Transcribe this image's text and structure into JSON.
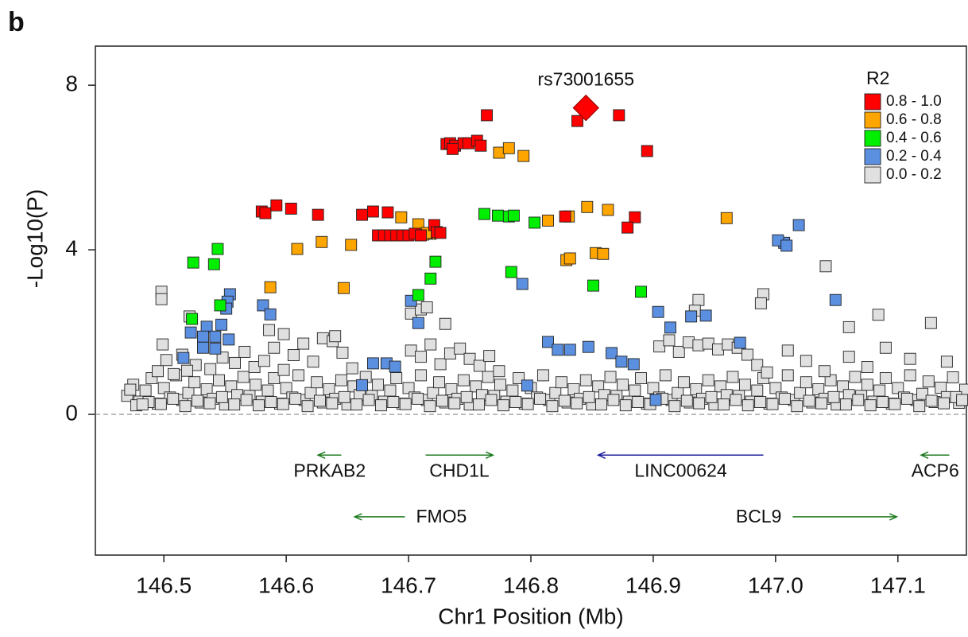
{
  "chart_data": {
    "type": "scatter",
    "panel_label": "b",
    "xlabel": "Chr1 Position (Mb)",
    "ylabel": "-Log10(P)",
    "xlim": [
      146.444,
      147.156
    ],
    "ylim": [
      -3.42,
      8.95
    ],
    "xticks": [
      146.5,
      146.6,
      146.7,
      146.8,
      146.9,
      {
        "value": 147,
        "label": "147.0"
      },
      147.1
    ],
    "yticks": [
      0,
      4,
      8
    ],
    "hline": 0,
    "legend": {
      "title": "R2",
      "position": "top-right"
    },
    "series": [
      {
        "name": "0.8 - 1.0",
        "color": "#ff0000",
        "x": [
          146.764,
          146.838,
          146.872,
          146.895,
          146.731,
          146.734,
          146.738,
          146.736,
          146.745,
          146.749,
          146.756,
          146.759,
          146.58,
          146.583,
          146.592,
          146.604,
          146.626,
          146.662,
          146.671,
          146.683,
          146.675,
          146.68,
          146.685,
          146.69,
          146.695,
          146.7,
          146.705,
          146.71,
          146.721,
          146.723,
          146.726,
          146.828,
          146.885,
          146.879
        ],
        "values": [
          7.27,
          7.13,
          7.27,
          6.4,
          6.57,
          6.59,
          6.53,
          6.45,
          6.59,
          6.59,
          6.65,
          6.53,
          4.93,
          4.89,
          5.08,
          5.0,
          4.85,
          4.85,
          4.93,
          4.91,
          4.35,
          4.35,
          4.35,
          4.35,
          4.35,
          4.35,
          4.39,
          4.35,
          4.6,
          4.43,
          4.41,
          4.81,
          4.79,
          4.54
        ]
      },
      {
        "name": "0.6 - 0.8",
        "color": "#ffa500",
        "x": [
          146.774,
          146.782,
          146.794,
          146.694,
          146.708,
          146.718,
          146.712,
          146.715,
          146.629,
          146.609,
          146.653,
          146.587,
          146.647,
          146.814,
          146.831,
          146.846,
          146.863,
          146.829,
          146.832,
          146.853,
          146.859,
          146.96
        ],
        "values": [
          6.36,
          6.47,
          6.28,
          4.79,
          4.62,
          4.39,
          4.37,
          4.41,
          4.19,
          4.02,
          4.12,
          3.09,
          3.07,
          4.71,
          4.81,
          5.04,
          4.97,
          3.75,
          3.79,
          3.92,
          3.9,
          4.77
        ]
      },
      {
        "name": "0.4 - 0.6",
        "color": "#00ee00",
        "x": [
          146.524,
          146.541,
          146.544,
          146.546,
          146.523,
          146.722,
          146.718,
          146.708,
          146.762,
          146.773,
          146.782,
          146.786,
          146.803,
          146.784,
          146.851,
          146.89
        ],
        "values": [
          3.69,
          3.65,
          4.02,
          2.65,
          2.32,
          3.71,
          3.3,
          2.9,
          4.87,
          4.83,
          4.81,
          4.83,
          4.66,
          3.46,
          3.13,
          2.98
        ]
      },
      {
        "name": "0.2 - 0.4",
        "color": "#5b8fe0",
        "x": [
          146.793,
          147.019,
          147.007,
          147.002,
          147.009,
          147.049,
          146.702,
          146.708,
          146.554,
          146.552,
          146.551,
          146.535,
          146.532,
          146.542,
          146.547,
          146.522,
          146.542,
          146.516,
          146.581,
          146.587,
          146.532,
          146.553,
          146.671,
          146.682,
          146.689,
          146.814,
          146.822,
          146.832,
          146.847,
          146.866,
          146.874,
          146.884,
          146.904,
          146.914,
          146.931,
          146.943,
          146.971,
          146.902,
          146.797,
          146.662
        ],
        "values": [
          3.17,
          4.6,
          4.17,
          4.23,
          4.1,
          2.78,
          2.76,
          2.22,
          2.92,
          2.74,
          2.57,
          2.13,
          1.89,
          1.89,
          2.18,
          1.99,
          1.6,
          1.37,
          2.65,
          2.43,
          1.62,
          1.82,
          1.24,
          1.24,
          1.16,
          1.76,
          1.57,
          1.57,
          1.64,
          1.49,
          1.28,
          1.22,
          2.49,
          2.11,
          2.38,
          2.4,
          1.74,
          0.35,
          0.7,
          0.71
        ]
      },
      {
        "name": "0.0 - 0.2",
        "color": "#e0e0e0",
        "x": [
          146.47,
          146.475,
          146.48,
          146.485,
          146.49,
          146.495,
          146.5,
          146.505,
          146.51,
          146.515,
          146.52,
          146.525,
          146.53,
          146.535,
          146.54,
          146.545,
          146.55,
          146.555,
          146.56,
          146.565,
          146.57,
          146.575,
          146.58,
          146.585,
          146.59,
          146.595,
          146.6,
          146.605,
          146.61,
          146.615,
          146.62,
          146.625,
          146.63,
          146.635,
          146.64,
          146.645,
          146.65,
          146.655,
          146.66,
          146.665,
          146.67,
          146.675,
          146.68,
          146.685,
          146.69,
          146.695,
          146.7,
          146.705,
          146.71,
          146.715,
          146.72,
          146.725,
          146.73,
          146.735,
          146.74,
          146.745,
          146.75,
          146.755,
          146.76,
          146.765,
          146.77,
          146.775,
          146.78,
          146.785,
          146.79,
          146.795,
          146.8,
          146.805,
          146.81,
          146.815,
          146.82,
          146.825,
          146.83,
          146.835,
          146.84,
          146.845,
          146.85,
          146.855,
          146.86,
          146.865,
          146.87,
          146.875,
          146.88,
          146.885,
          146.89,
          146.895,
          146.9,
          146.905,
          146.91,
          146.915,
          146.92,
          146.925,
          146.93,
          146.935,
          146.94,
          146.945,
          146.95,
          146.955,
          146.96,
          146.965,
          146.97,
          146.975,
          146.98,
          146.985,
          146.99,
          146.995,
          147.0,
          147.005,
          147.01,
          147.015,
          147.02,
          147.025,
          147.03,
          147.035,
          147.04,
          147.045,
          147.05,
          147.055,
          147.06,
          147.065,
          147.07,
          147.075,
          147.08,
          147.085,
          147.09,
          147.095,
          147.1,
          147.105,
          147.11,
          147.115,
          147.12,
          147.125,
          147.13,
          147.135,
          147.14,
          147.145,
          147.15,
          147.155,
          147.1525,
          146.4725,
          146.4775,
          146.4875,
          146.4975,
          146.5075,
          146.5175,
          146.5275,
          146.5375,
          146.5475,
          146.5575,
          146.5675,
          146.5775,
          146.5875,
          146.5975,
          146.6075,
          146.6175,
          146.6275,
          146.6375,
          146.6475,
          146.6575,
          146.6675,
          146.6775,
          146.6875,
          146.6975,
          146.7075,
          146.7175,
          146.7275,
          146.7375,
          146.7475,
          146.7575,
          146.7675,
          146.7775,
          146.7875,
          146.7975,
          146.8075,
          146.8175,
          146.8275,
          146.8375,
          146.8475,
          146.8575,
          146.8675,
          146.8775,
          146.8875,
          146.8975,
          146.9075,
          146.9175,
          146.9275,
          146.9375,
          146.9475,
          146.9575,
          146.9675,
          146.9775,
          146.9875,
          146.9975,
          147.0075,
          147.0175,
          147.0275,
          147.0375,
          147.0475,
          147.0575,
          147.0675,
          147.0775,
          147.0875,
          147.0975,
          147.1075,
          147.1175,
          147.1275,
          147.1375,
          147.1475,
          146.4825,
          147.1525,
          146.495,
          146.502,
          146.508,
          146.515,
          146.526,
          146.538,
          146.548,
          146.558,
          146.566,
          146.574,
          146.582,
          146.59,
          146.598,
          146.606,
          146.614,
          146.622,
          146.63,
          146.638,
          146.646,
          146.654,
          146.702,
          146.71,
          146.718,
          146.726,
          146.734,
          146.742,
          146.75,
          146.758,
          146.766,
          146.774,
          146.905,
          146.913,
          146.921,
          146.929,
          146.937,
          146.945,
          146.953,
          146.961,
          146.969,
          146.977,
          146.985,
          146.993,
          147.01,
          147.025,
          147.04,
          147.06,
          147.075,
          147.09,
          147.11,
          147.14,
          146.498,
          146.498,
          146.521,
          146.499,
          146.519,
          146.586,
          146.598,
          146.64,
          146.702,
          146.71,
          146.715,
          146.73,
          146.937,
          146.934,
          146.99,
          146.988,
          147.041,
          147.06,
          147.084,
          147.127
        ],
        "values": [
          0.45,
          0.72,
          0.31,
          0.58,
          0.88,
          0.26,
          0.64,
          0.41,
          0.95,
          0.35,
          0.52,
          0.78,
          0.29,
          0.61,
          0.38,
          0.83,
          0.24,
          0.68,
          0.47,
          0.91,
          0.45,
          0.72,
          0.31,
          0.58,
          0.88,
          0.26,
          0.64,
          0.41,
          0.95,
          0.35,
          0.52,
          0.78,
          0.29,
          0.61,
          0.38,
          0.83,
          0.24,
          0.68,
          0.47,
          0.91,
          0.45,
          0.72,
          0.31,
          0.58,
          0.88,
          0.26,
          0.64,
          0.41,
          0.95,
          0.35,
          0.52,
          0.78,
          0.29,
          0.61,
          0.38,
          0.83,
          0.24,
          0.68,
          0.47,
          0.91,
          0.45,
          0.72,
          0.31,
          0.58,
          0.88,
          0.26,
          0.64,
          0.41,
          0.95,
          0.35,
          0.52,
          0.78,
          0.29,
          0.61,
          0.38,
          0.83,
          0.24,
          0.68,
          0.47,
          0.91,
          0.45,
          0.72,
          0.31,
          0.58,
          0.88,
          0.26,
          0.64,
          0.41,
          0.95,
          0.35,
          0.52,
          0.78,
          0.29,
          0.61,
          0.38,
          0.83,
          0.24,
          0.68,
          0.47,
          0.91,
          0.45,
          0.72,
          0.31,
          0.58,
          0.88,
          0.26,
          0.64,
          0.41,
          0.95,
          0.35,
          0.52,
          0.78,
          0.29,
          0.61,
          0.38,
          0.83,
          0.24,
          0.68,
          0.47,
          0.91,
          0.45,
          0.72,
          0.31,
          0.58,
          0.88,
          0.26,
          0.64,
          0.41,
          0.95,
          0.35,
          0.5,
          0.8,
          0.3,
          0.65,
          0.42,
          0.9,
          0.28,
          0.6,
          0.35,
          0.6,
          0.22,
          0.3,
          0.25,
          0.38,
          0.2,
          0.33,
          0.27,
          0.42,
          0.24,
          0.35,
          0.22,
          0.3,
          0.25,
          0.38,
          0.2,
          0.33,
          0.27,
          0.42,
          0.24,
          0.35,
          0.22,
          0.3,
          0.25,
          0.38,
          0.2,
          0.33,
          0.27,
          0.42,
          0.24,
          0.35,
          0.22,
          0.3,
          0.25,
          0.38,
          0.2,
          0.33,
          0.27,
          0.42,
          0.24,
          0.35,
          0.22,
          0.3,
          0.25,
          0.38,
          0.2,
          0.33,
          0.27,
          0.42,
          0.24,
          0.35,
          0.22,
          0.3,
          0.25,
          0.38,
          0.2,
          0.33,
          0.27,
          0.42,
          0.24,
          0.35,
          0.22,
          0.3,
          0.25,
          0.38,
          0.2,
          0.33,
          0.27,
          0.42,
          0.24,
          0.35,
          1.05,
          1.32,
          0.98,
          1.45,
          1.2,
          1.1,
          1.38,
          1.25,
          1.52,
          1.15,
          1.3,
          1.62,
          1.08,
          1.44,
          1.72,
          1.28,
          1.85,
          1.78,
          1.5,
          1.12,
          1.55,
          1.4,
          1.7,
          1.22,
          1.48,
          1.6,
          1.35,
          1.18,
          1.42,
          1.05,
          1.65,
          1.8,
          1.52,
          1.75,
          1.68,
          1.72,
          1.58,
          1.7,
          1.62,
          1.45,
          1.2,
          1.02,
          1.55,
          1.3,
          1.05,
          1.4,
          1.15,
          1.62,
          1.35,
          1.28,
          2.98,
          2.8,
          2.38,
          1.7,
          1.06,
          2.05,
          1.95,
          1.9,
          2.45,
          2.55,
          2.6,
          2.2,
          2.78,
          2.52,
          2.92,
          2.7,
          3.6,
          2.12,
          2.42,
          2.22
        ]
      }
    ],
    "annotation": {
      "text": "rs73001655",
      "x": 146.845,
      "y": 7.45,
      "color": "#ff0000"
    },
    "gene_tracks": [
      [
        {
          "name": "PRKAB2",
          "start": 146.645,
          "end": 146.626,
          "color": "#1f7a1f"
        },
        {
          "name": "CHD1L",
          "start": 146.714,
          "end": 146.769,
          "color": "#1f7a1f"
        },
        {
          "name": "LINC00624",
          "start": 146.99,
          "end": 146.855,
          "color": "#1c1c9c"
        },
        {
          "name": "ACP6",
          "start": 147.142,
          "end": 147.119,
          "color": "#1f7a1f"
        }
      ],
      [
        {
          "name": "FMO5",
          "start": 146.697,
          "end": 146.656,
          "color": "#1f7a1f"
        },
        {
          "name": "BCL9",
          "start": 147.014,
          "end": 147.099,
          "color": "#1f7a1f"
        }
      ]
    ]
  }
}
